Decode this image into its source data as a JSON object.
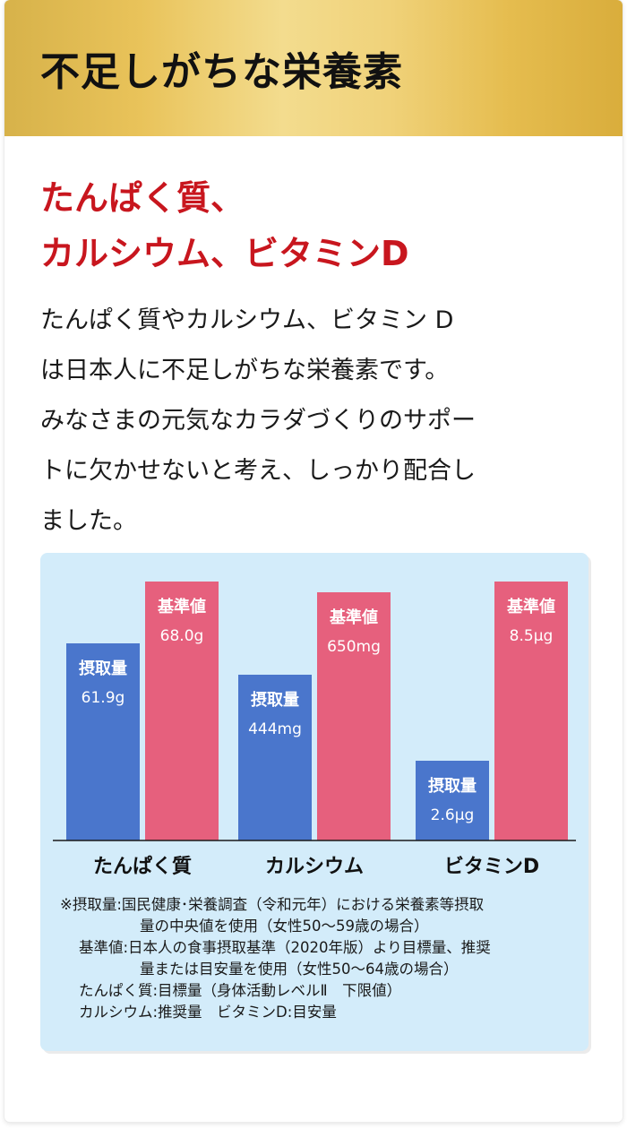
{
  "header": {
    "title": "不足しがちな栄養素"
  },
  "subtitle": {
    "lines": [
      "たんぱく質、",
      "カルシウム、ビタミンD"
    ]
  },
  "body": {
    "lines": [
      "たんぱく質やカルシウム、ビタミン D",
      "は日本人に不足しがちな栄養素です。",
      "みなさまの元気なカラダづくりのサポー",
      "トに欠かせないと考え、しっかり配合し",
      "ました。"
    ]
  },
  "colors": {
    "intake": "#4a76cc",
    "standard": "#e6607d",
    "background": "#d3ecfa",
    "accent_red": "#c8161e"
  },
  "chart_data": {
    "type": "bar",
    "categories": [
      "たんぱく質",
      "カルシウム",
      "ビタミンD"
    ],
    "series": [
      {
        "name": "摂取量",
        "labels": [
          "61.9g",
          "444mg",
          "2.6μg"
        ],
        "relative_height": [
          0.761,
          0.641,
          0.307
        ]
      },
      {
        "name": "基準値",
        "labels": [
          "68.0g",
          "650mg",
          "8.5μg"
        ],
        "relative_height": [
          1.0,
          0.96,
          1.0
        ]
      }
    ],
    "ylim": [
      0,
      1
    ]
  },
  "notes": {
    "lines": [
      "※摂取量:国民健康･栄養調査（令和元年）における栄養素等摂取",
      "量の中央値を使用（女性50～59歳の場合）",
      "基準値:日本人の食事摂取基準（2020年版）より目標量、推奨",
      "量または目安量を使用（女性50～64歳の場合）",
      "たんぱく質:目標量（身体活動レベルⅡ　下限値）",
      "カルシウム:推奨量　ビタミンD:目安量"
    ]
  }
}
